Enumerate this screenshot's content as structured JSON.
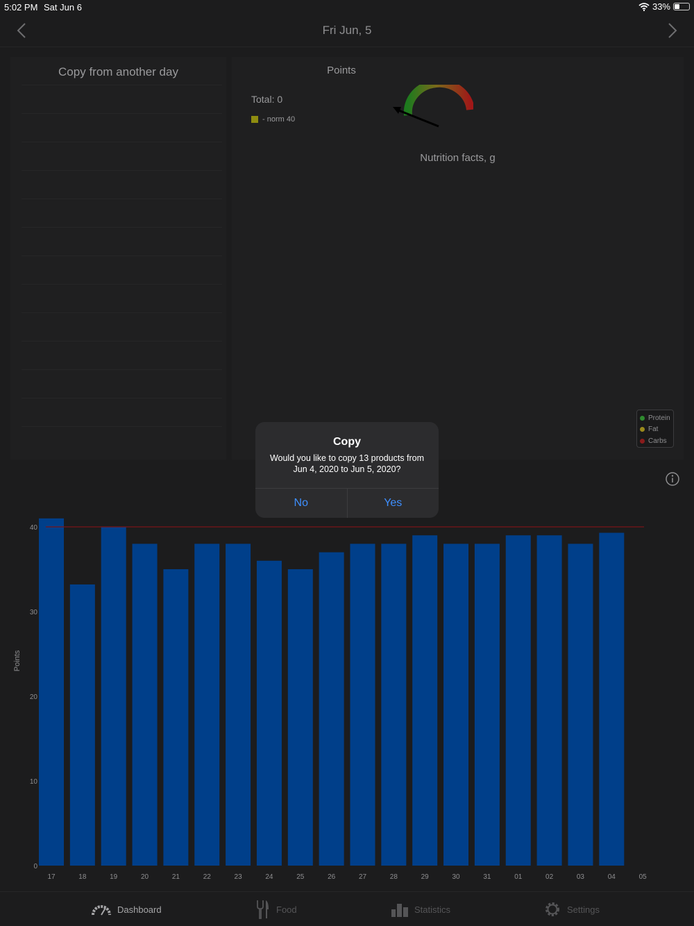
{
  "status_bar": {
    "time": "5:02 PM",
    "date": "Sat Jun 6",
    "battery": "33%",
    "battery_level": 0.33
  },
  "nav": {
    "title": "Fri  Jun, 5"
  },
  "copy_panel": {
    "title": "Copy from another day"
  },
  "points": {
    "title": "Points",
    "total": "Total: 0",
    "norm": "- norm 40",
    "norm_color": "#8e8c10"
  },
  "nutrition": {
    "title": "Nutrition facts, g",
    "legend": [
      {
        "label": "Protein",
        "color": "#2e8b2e"
      },
      {
        "label": "Fat",
        "color": "#9a8a1c"
      },
      {
        "label": "Carbs",
        "color": "#8a1c1c"
      }
    ]
  },
  "dialog": {
    "title": "Copy",
    "message": "Would you like to copy 13 products from Jun 4, 2020 to Jun 5, 2020?",
    "no_label": "No",
    "yes_label": "Yes"
  },
  "chart_data": {
    "type": "bar",
    "ylabel": "Points",
    "categories": [
      "17",
      "18",
      "19",
      "20",
      "21",
      "22",
      "23",
      "24",
      "25",
      "26",
      "27",
      "28",
      "29",
      "30",
      "31",
      "01",
      "02",
      "03",
      "04",
      "05"
    ],
    "values": [
      41,
      33.2,
      40,
      38,
      35,
      38,
      38,
      36,
      35,
      37,
      38,
      38,
      39,
      38,
      38,
      39,
      39,
      38,
      39.3,
      0
    ],
    "yticks": [
      0,
      10,
      20,
      30,
      40
    ],
    "ylim": [
      0,
      40
    ],
    "norm_line": 40,
    "bar_color": "#003f8a",
    "norm_line_color": "#7a1418"
  },
  "tabs": [
    {
      "label": "Dashboard",
      "icon": "speedometer-icon",
      "active": true
    },
    {
      "label": "Food",
      "icon": "fork-knife-icon",
      "active": false
    },
    {
      "label": "Statistics",
      "icon": "bar-chart-icon",
      "active": false
    },
    {
      "label": "Settings",
      "icon": "gear-icon",
      "active": false
    }
  ]
}
